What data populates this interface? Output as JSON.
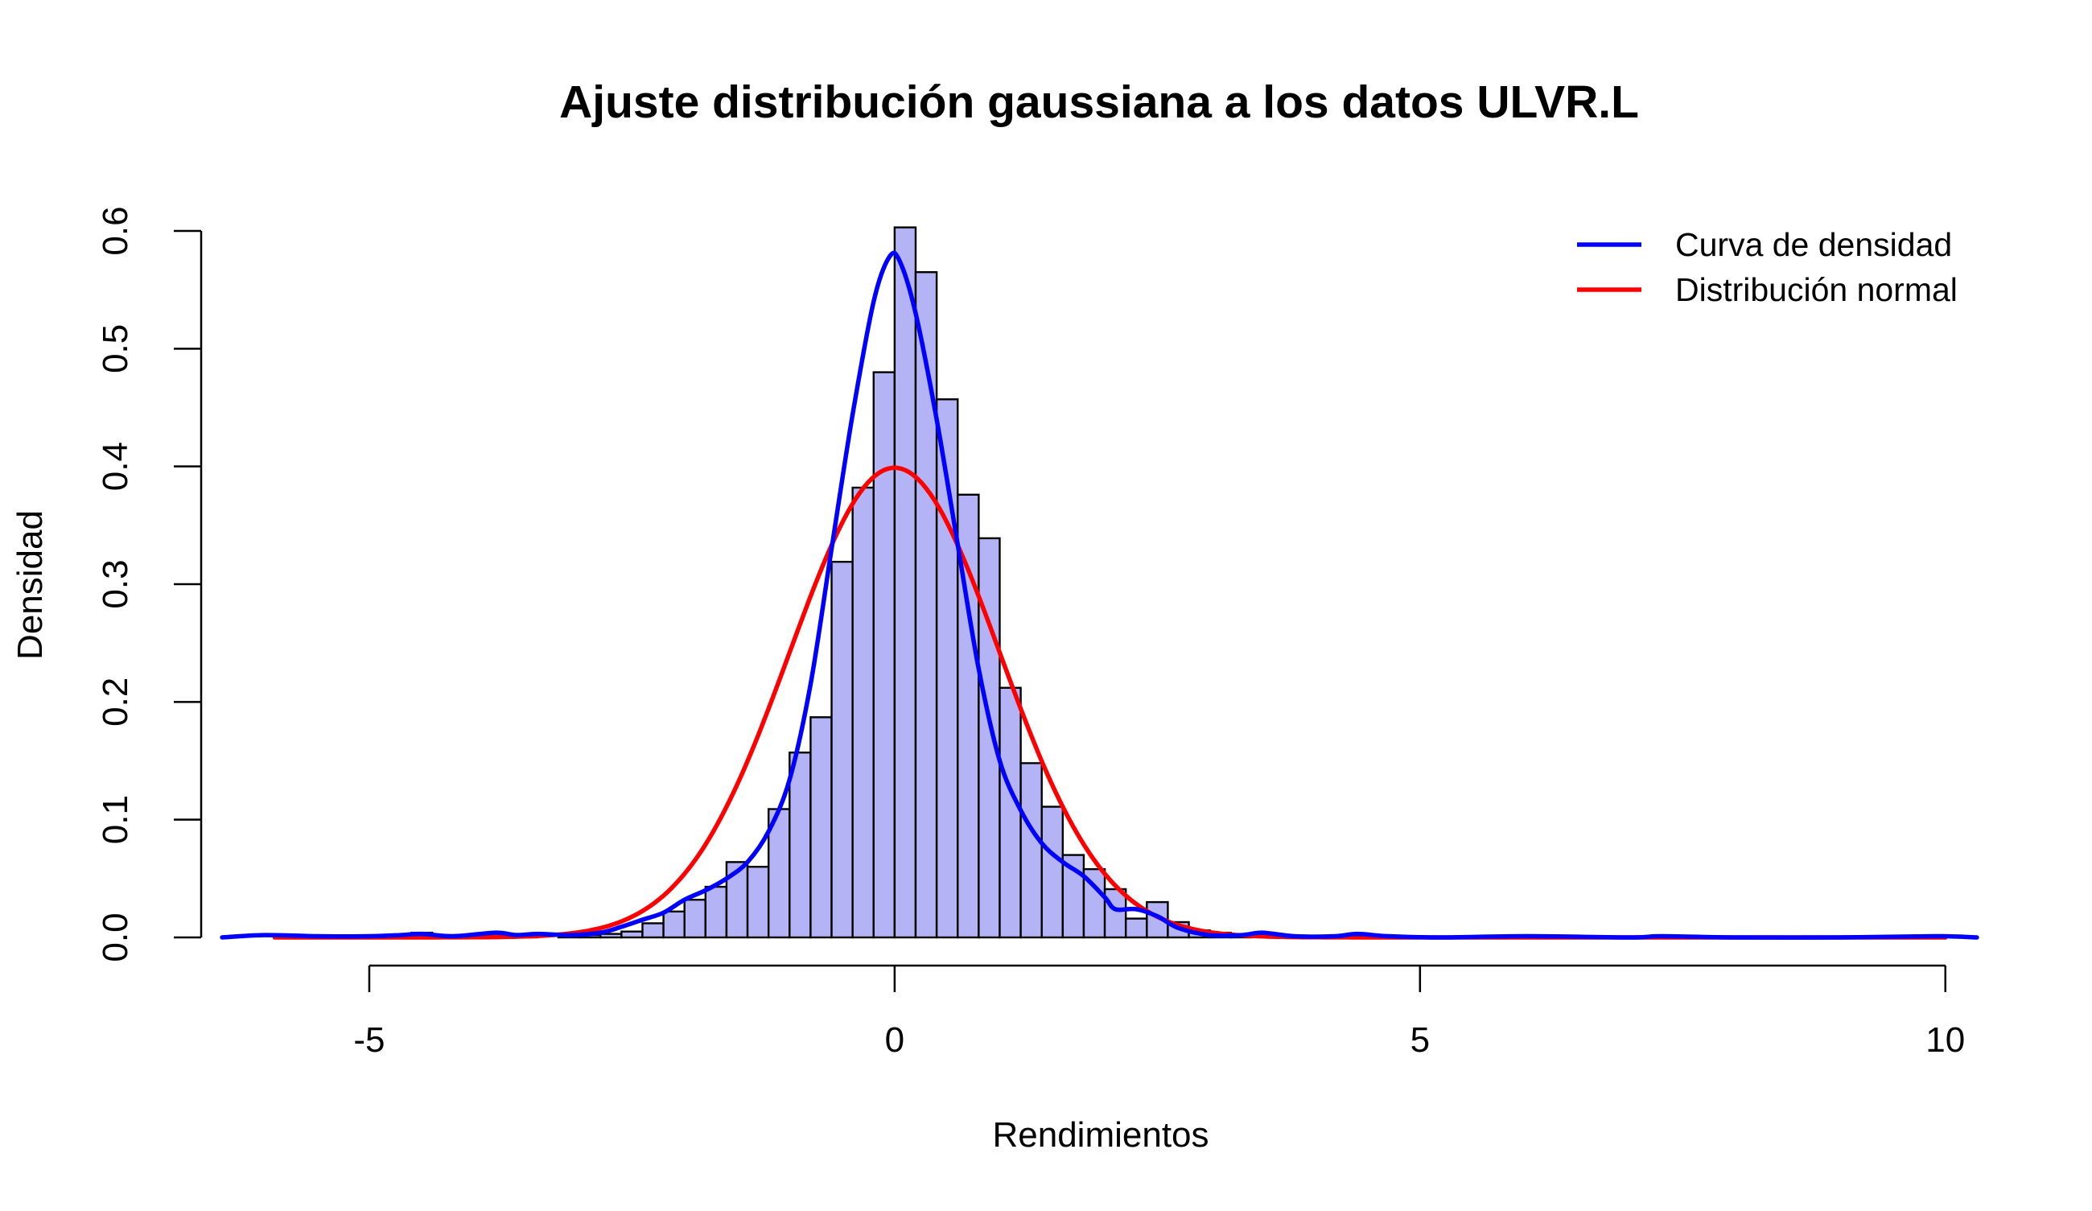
{
  "chart_data": {
    "type": "histogram",
    "title": "Ajuste distribución gaussiana a los datos ULVR.L",
    "xlabel": "Rendimientos",
    "ylabel": "Densidad",
    "xlim": [
      -6.6,
      10.4
    ],
    "ylim": [
      0,
      0.6
    ],
    "x_ticks": [
      -5,
      0,
      5,
      10
    ],
    "x_tick_labels": [
      "-5",
      "0",
      "5",
      "10"
    ],
    "y_ticks": [
      0.0,
      0.1,
      0.2,
      0.3,
      0.4,
      0.5,
      0.6
    ],
    "y_tick_labels": [
      "0.0",
      "0.1",
      "0.2",
      "0.3",
      "0.4",
      "0.5",
      "0.6"
    ],
    "grid": false,
    "legend_position": "top-right",
    "colors": {
      "bars_fill": "#b3b3f5",
      "bars_stroke": "#000000",
      "density": "#0000ff",
      "normal": "#ff0000"
    },
    "histogram": {
      "bin_width": 0.2,
      "bins": [
        [
          -4.8,
          0.002
        ],
        [
          -4.6,
          0.004
        ],
        [
          -4.4,
          0.001
        ],
        [
          -3.6,
          0.003
        ],
        [
          -3.2,
          0.002
        ],
        [
          -3.0,
          0.002
        ],
        [
          -2.8,
          0.003
        ],
        [
          -2.6,
          0.005
        ],
        [
          -2.4,
          0.012
        ],
        [
          -2.2,
          0.022
        ],
        [
          -2.0,
          0.032
        ],
        [
          -1.8,
          0.043
        ],
        [
          -1.6,
          0.064
        ],
        [
          -1.4,
          0.06
        ],
        [
          -1.2,
          0.109
        ],
        [
          -1.0,
          0.157
        ],
        [
          -0.8,
          0.187
        ],
        [
          -0.6,
          0.319
        ],
        [
          -0.4,
          0.382
        ],
        [
          -0.2,
          0.48
        ],
        [
          0.0,
          0.603
        ],
        [
          0.2,
          0.565
        ],
        [
          0.4,
          0.457
        ],
        [
          0.6,
          0.376
        ],
        [
          0.8,
          0.339
        ],
        [
          1.0,
          0.212
        ],
        [
          1.2,
          0.148
        ],
        [
          1.4,
          0.111
        ],
        [
          1.6,
          0.07
        ],
        [
          1.8,
          0.058
        ],
        [
          2.0,
          0.041
        ],
        [
          2.2,
          0.016
        ],
        [
          2.4,
          0.03
        ],
        [
          2.6,
          0.013
        ],
        [
          2.8,
          0.006
        ],
        [
          3.0,
          0.004
        ],
        [
          3.2,
          0.002
        ],
        [
          4.4,
          0.002
        ]
      ]
    },
    "series": [
      {
        "name": "Curva de densidad",
        "color": "#0000ff",
        "points": [
          [
            -6.4,
            0.0
          ],
          [
            -6.0,
            0.002
          ],
          [
            -5.5,
            0.001
          ],
          [
            -5.0,
            0.001
          ],
          [
            -4.7,
            0.002
          ],
          [
            -4.5,
            0.003
          ],
          [
            -4.2,
            0.001
          ],
          [
            -3.8,
            0.004
          ],
          [
            -3.6,
            0.002
          ],
          [
            -3.4,
            0.003
          ],
          [
            -3.1,
            0.002
          ],
          [
            -2.8,
            0.004
          ],
          [
            -2.6,
            0.009
          ],
          [
            -2.4,
            0.015
          ],
          [
            -2.2,
            0.021
          ],
          [
            -2.0,
            0.032
          ],
          [
            -1.8,
            0.04
          ],
          [
            -1.6,
            0.05
          ],
          [
            -1.4,
            0.064
          ],
          [
            -1.2,
            0.09
          ],
          [
            -1.0,
            0.134
          ],
          [
            -0.8,
            0.215
          ],
          [
            -0.6,
            0.33
          ],
          [
            -0.4,
            0.444
          ],
          [
            -0.2,
            0.54
          ],
          [
            -0.05,
            0.578
          ],
          [
            0.05,
            0.574
          ],
          [
            0.2,
            0.53
          ],
          [
            0.4,
            0.44
          ],
          [
            0.6,
            0.334
          ],
          [
            0.8,
            0.228
          ],
          [
            1.0,
            0.15
          ],
          [
            1.2,
            0.108
          ],
          [
            1.4,
            0.08
          ],
          [
            1.6,
            0.064
          ],
          [
            1.8,
            0.052
          ],
          [
            2.0,
            0.034
          ],
          [
            2.1,
            0.024
          ],
          [
            2.3,
            0.024
          ],
          [
            2.5,
            0.018
          ],
          [
            2.7,
            0.008
          ],
          [
            3.0,
            0.002
          ],
          [
            3.3,
            0.002
          ],
          [
            3.5,
            0.004
          ],
          [
            3.8,
            0.001
          ],
          [
            4.2,
            0.001
          ],
          [
            4.4,
            0.003
          ],
          [
            4.7,
            0.001
          ],
          [
            5.2,
            0.0
          ],
          [
            6.0,
            0.001
          ],
          [
            7.0,
            0.0
          ],
          [
            7.3,
            0.001
          ],
          [
            8.0,
            0.0
          ],
          [
            9.0,
            0.0
          ],
          [
            9.9,
            0.001
          ],
          [
            10.3,
            0.0
          ]
        ]
      },
      {
        "name": "Distribución normal",
        "color": "#ff0000",
        "mean": 0,
        "sd": 1,
        "x_range": [
          -5.9,
          10.0
        ]
      }
    ],
    "legend": [
      {
        "label": "Curva de densidad",
        "color": "#0000ff"
      },
      {
        "label": "Distribución normal",
        "color": "#ff0000"
      }
    ]
  }
}
